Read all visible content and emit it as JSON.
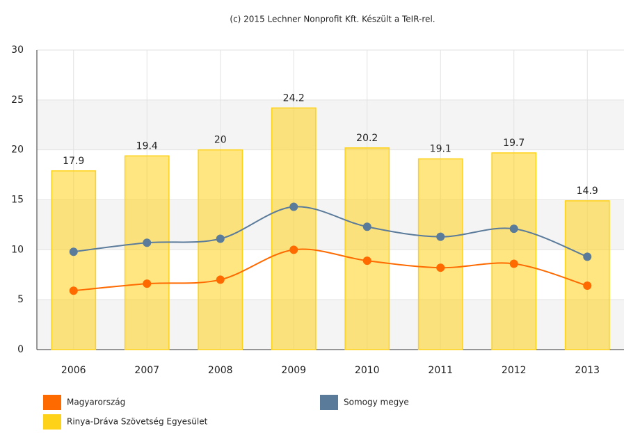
{
  "chart_data": {
    "type": "combo",
    "title": "(c) 2015 Lechner Nonprofit Kft. Készült a TeIR-rel.",
    "categories": [
      "2006",
      "2007",
      "2008",
      "2009",
      "2010",
      "2011",
      "2012",
      "2013"
    ],
    "series": [
      {
        "name": "Magyarország",
        "type": "line",
        "color": "#ff6a00",
        "values": [
          5.9,
          6.6,
          7.0,
          10.0,
          8.9,
          8.2,
          8.6,
          6.4
        ]
      },
      {
        "name": "Somogy megye",
        "type": "line",
        "color": "#5b7b9b",
        "values": [
          9.8,
          10.7,
          11.1,
          14.3,
          12.3,
          11.3,
          12.1,
          9.3
        ]
      },
      {
        "name": "Rinya-Dráva Szövetség Egyesület",
        "type": "bar",
        "color": "#ffd21a",
        "values": [
          17.9,
          19.4,
          20,
          24.2,
          20.2,
          19.1,
          19.7,
          14.9
        ]
      }
    ],
    "ylim": [
      0,
      30
    ],
    "yticks": [
      0,
      5,
      10,
      15,
      20,
      25,
      30
    ],
    "grid": true,
    "legend": "bottom"
  }
}
